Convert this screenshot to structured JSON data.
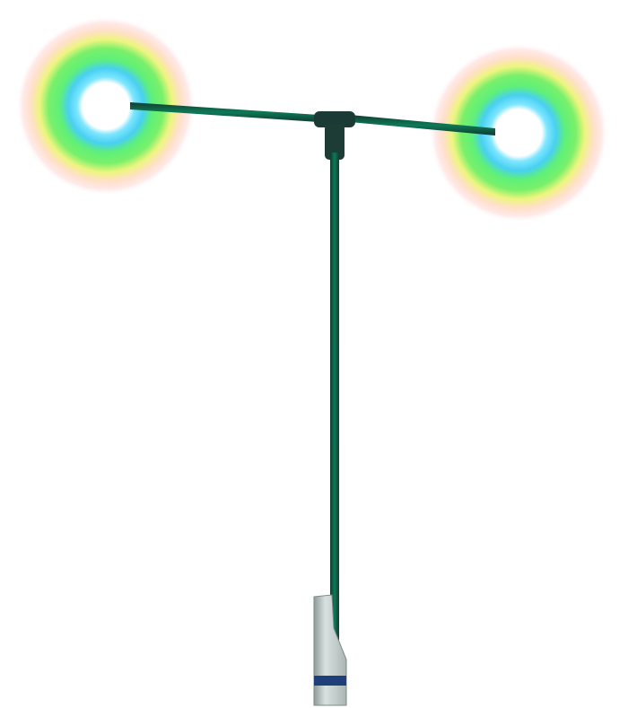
{
  "illustration": {
    "subject": "street-lamp-post",
    "colors": {
      "background": "#ffffff",
      "pole": "#0a6b4f",
      "pole_dark": "#123b30",
      "connector": "#1b3a36",
      "base_stone": "#c9d3d1",
      "base_band": "#1e3f7a",
      "glow_core": "#ffffff",
      "glow_cyan": "#48d8f0",
      "glow_green": "#5df06a",
      "glow_yellow": "#f2f58a",
      "glow_pink": "#ffd6d6"
    }
  }
}
